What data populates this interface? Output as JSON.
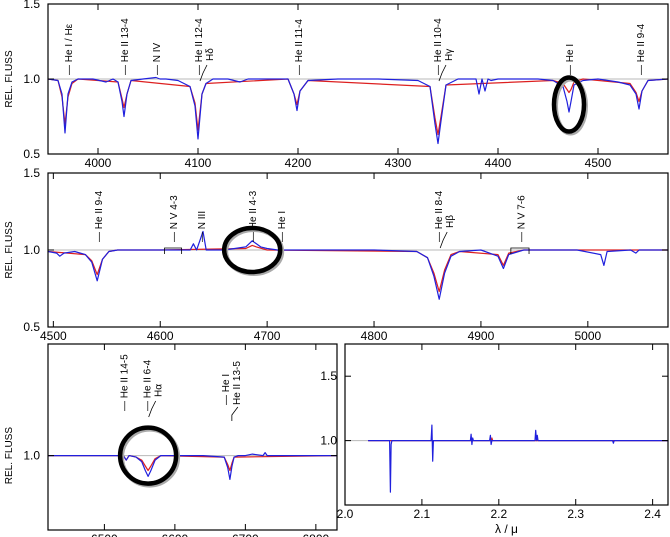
{
  "chart_data": [
    {
      "type": "line",
      "panel": "top",
      "ylabel": "REL. FLUSS",
      "xlim": [
        3950,
        4570
      ],
      "ylim": [
        0.5,
        1.5
      ],
      "xticks": [
        4000,
        4100,
        4200,
        4300,
        4400,
        4500
      ],
      "xtick_labels": [
        "4000",
        "4100",
        "4200",
        "4300",
        "4400",
        "4500"
      ],
      "yticks": [
        0.5,
        1.0,
        1.5
      ],
      "ytick_labels": [
        "0.5",
        "1.0",
        "1.5"
      ],
      "series": [
        {
          "color": "#2020dd",
          "x": [
            3950,
            3960,
            3964,
            3967,
            3970,
            3974,
            3980,
            3995,
            4008,
            4015,
            4020,
            4024,
            4026,
            4029,
            4033,
            4045,
            4058,
            4062,
            4068,
            4080,
            4092,
            4097,
            4100,
            4102,
            4104,
            4108,
            4115,
            4130,
            4142,
            4150,
            4170,
            4190,
            4196,
            4199,
            4202,
            4210,
            4240,
            4280,
            4320,
            4332,
            4337,
            4340,
            4343,
            4348,
            4360,
            4378,
            4381,
            4384,
            4387,
            4390,
            4393,
            4400,
            4420,
            4440,
            4455,
            4465,
            4469,
            4471,
            4473,
            4476,
            4485,
            4500,
            4520,
            4532,
            4538,
            4541,
            4544,
            4550,
            4570
          ],
          "y": [
            1.0,
            0.99,
            0.9,
            0.64,
            0.9,
            0.98,
            1.0,
            1.0,
            0.98,
            1.0,
            0.98,
            0.85,
            0.75,
            0.9,
            0.99,
            1.0,
            1.01,
            1.0,
            1.0,
            0.99,
            0.95,
            0.82,
            0.6,
            0.75,
            0.9,
            0.97,
            1.0,
            1.0,
            0.98,
            1.0,
            1.0,
            1.0,
            0.9,
            0.79,
            0.92,
            0.99,
            1.0,
            1.0,
            0.99,
            0.95,
            0.7,
            0.57,
            0.72,
            0.96,
            1.0,
            1.0,
            0.9,
            1.0,
            0.92,
            1.0,
            0.99,
            1.0,
            1.0,
            1.0,
            0.99,
            0.95,
            0.85,
            0.78,
            0.85,
            0.96,
            0.99,
            1.0,
            0.98,
            0.96,
            0.9,
            0.8,
            0.92,
            0.99,
            1.0
          ]
        },
        {
          "color": "#dd2020",
          "x": [
            3950,
            3960,
            3964,
            3967,
            3970,
            3974,
            3980,
            4020,
            4024,
            4026,
            4029,
            4033,
            4092,
            4097,
            4100,
            4102,
            4104,
            4108,
            4190,
            4196,
            4199,
            4202,
            4210,
            4332,
            4337,
            4340,
            4343,
            4348,
            4455,
            4465,
            4469,
            4471,
            4473,
            4476,
            4485,
            4532,
            4538,
            4541,
            4544,
            4550,
            4570
          ],
          "y": [
            1.0,
            0.99,
            0.88,
            0.7,
            0.88,
            0.97,
            1.0,
            0.98,
            0.87,
            0.81,
            0.9,
            0.99,
            0.95,
            0.84,
            0.66,
            0.78,
            0.9,
            0.97,
            1.0,
            0.9,
            0.83,
            0.92,
            0.99,
            0.95,
            0.74,
            0.63,
            0.75,
            0.96,
            0.99,
            0.97,
            0.93,
            0.91,
            0.93,
            0.98,
            1.0,
            0.97,
            0.91,
            0.85,
            0.92,
            0.99,
            1.0
          ]
        }
      ],
      "annotations": [
        {
          "label": "He I / Hε",
          "x": 3970
        },
        {
          "label": "He II 13-4",
          "x": 4026
        },
        {
          "label": "N IV",
          "x": 4058
        },
        {
          "label": "He II 12-4",
          "x": 4100,
          "second": "Hδ"
        },
        {
          "label": "He II 11-4",
          "x": 4200
        },
        {
          "label": "He II 10-4",
          "x": 4339,
          "second": "Hγ"
        },
        {
          "label": "He I",
          "x": 4471
        },
        {
          "label": "He II 9-4",
          "x": 4542
        }
      ],
      "circles": [
        {
          "x": 4471,
          "y": 0.83
        }
      ]
    },
    {
      "type": "line",
      "panel": "middle",
      "ylabel": "REL. FLUSS",
      "xlim": [
        4495,
        5075
      ],
      "ylim": [
        0.5,
        1.5
      ],
      "xticks": [
        4500,
        4600,
        4700,
        4800,
        4900,
        5000
      ],
      "xtick_labels": [
        "4500",
        "4600",
        "4700",
        "4800",
        "4900",
        "5000"
      ],
      "yticks": [
        0.5,
        1.0,
        1.5
      ],
      "ytick_labels": [
        "0.5",
        "1.0",
        "1.5"
      ],
      "series": [
        {
          "color": "#2020dd",
          "x": [
            4495,
            4503,
            4506,
            4510,
            4520,
            4530,
            4536,
            4541,
            4546,
            4552,
            4560,
            4600,
            4628,
            4631,
            4634,
            4637,
            4640,
            4643,
            4650,
            4660,
            4680,
            4686,
            4690,
            4694,
            4700,
            4710,
            4713,
            4716,
            4740,
            4800,
            4840,
            4850,
            4856,
            4861,
            4866,
            4872,
            4880,
            4900,
            4916,
            4921,
            4926,
            4940,
            4990,
            5012,
            5015,
            5018,
            5040,
            5045,
            5048,
            5075
          ],
          "y": [
            0.99,
            0.98,
            0.96,
            0.98,
            0.99,
            0.97,
            0.92,
            0.8,
            0.94,
            0.99,
            1.0,
            1.0,
            1.0,
            1.04,
            1.0,
            1.06,
            1.12,
            1.0,
            1.0,
            1.0,
            1.02,
            1.06,
            1.04,
            1.02,
            1.01,
            1.0,
            0.98,
            1.0,
            1.0,
            1.0,
            0.99,
            0.95,
            0.83,
            0.68,
            0.85,
            0.96,
            0.99,
            1.0,
            0.96,
            0.88,
            0.97,
            1.0,
            1.0,
            0.97,
            0.9,
            0.99,
            1.0,
            0.98,
            1.0,
            1.0
          ]
        },
        {
          "color": "#dd2020",
          "x": [
            4495,
            4530,
            4536,
            4541,
            4546,
            4552,
            4560,
            4600,
            4680,
            4686,
            4690,
            4700,
            4840,
            4850,
            4856,
            4861,
            4866,
            4872,
            4880,
            4916,
            4921,
            4926,
            4940,
            5075
          ],
          "y": [
            0.99,
            0.97,
            0.93,
            0.84,
            0.94,
            0.99,
            1.0,
            1.0,
            1.01,
            1.03,
            1.02,
            1.0,
            0.99,
            0.95,
            0.85,
            0.73,
            0.87,
            0.97,
            0.99,
            0.97,
            0.9,
            0.98,
            1.0,
            1.0
          ]
        }
      ],
      "annotations": [
        {
          "label": "He II 9-4",
          "x": 4542
        },
        {
          "label": "N V 4-3",
          "x": 4612,
          "bracket": [
            4604,
            4620
          ]
        },
        {
          "label": "N III",
          "x": 4638
        },
        {
          "label": "He II 4-3",
          "x": 4686
        },
        {
          "label": "He I",
          "x": 4713
        },
        {
          "label": "He II 8-4",
          "x": 4860,
          "second": "Hβ"
        },
        {
          "label": "N V 7-6",
          "x": 4937,
          "bracket": [
            4928,
            4945
          ]
        }
      ],
      "circles": [
        {
          "x": 4686,
          "y": 1.0
        }
      ]
    },
    {
      "type": "line",
      "panel": "bottom-left",
      "ylabel": "REL. FLUSS",
      "xlim": [
        6420,
        6830
      ],
      "ylim": [
        0.5,
        1.75
      ],
      "xticks": [
        6500,
        6600,
        6700,
        6800
      ],
      "xtick_labels": [
        "6500",
        "6600",
        "6700",
        "6800"
      ],
      "yticks": [
        1.0
      ],
      "ytick_labels": [
        "1.0"
      ],
      "series": [
        {
          "color": "#2020dd",
          "x": [
            6420,
            6470,
            6500,
            6527,
            6531,
            6535,
            6545,
            6553,
            6558,
            6562,
            6566,
            6572,
            6580,
            6600,
            6640,
            6670,
            6675,
            6678,
            6681,
            6684,
            6690,
            6700,
            6710,
            6725,
            6728,
            6731,
            6750,
            6830
          ],
          "y": [
            1.0,
            1.0,
            1.0,
            1.0,
            0.97,
            1.0,
            0.99,
            0.96,
            0.9,
            0.86,
            0.9,
            0.97,
            1.0,
            1.0,
            1.0,
            0.99,
            0.92,
            0.84,
            0.93,
            0.99,
            1.0,
            1.0,
            1.01,
            1.0,
            1.02,
            1.0,
            1.0,
            1.0
          ]
        },
        {
          "color": "#dd2020",
          "x": [
            6420,
            6527,
            6531,
            6535,
            6545,
            6553,
            6558,
            6562,
            6566,
            6572,
            6580,
            6670,
            6675,
            6678,
            6681,
            6684,
            6830
          ],
          "y": [
            1.0,
            1.0,
            0.97,
            1.0,
            0.99,
            0.97,
            0.93,
            0.9,
            0.93,
            0.98,
            1.0,
            0.99,
            0.94,
            0.9,
            0.95,
            0.99,
            1.0
          ]
        }
      ],
      "annotations": [
        {
          "label": "He II 14-5",
          "x": 6527
        },
        {
          "label": "He II 6-4",
          "x": 6560,
          "second": "Hα"
        },
        {
          "label": "He I",
          "x": 6678,
          "group": "He II 13-5"
        }
      ],
      "circles": [
        {
          "x": 6562,
          "y": 1.0
        }
      ]
    },
    {
      "type": "line",
      "panel": "bottom-right",
      "xlabel": "λ / μ",
      "xlim": [
        2.0,
        2.42
      ],
      "ylim": [
        0.5,
        1.75
      ],
      "xticks": [
        2.0,
        2.1,
        2.2,
        2.3,
        2.4
      ],
      "xtick_labels": [
        "2.0",
        "2.1",
        "2.2",
        "2.3",
        "2.4"
      ],
      "yticks": [
        1.0,
        1.5
      ],
      "ytick_labels": [
        "1.0",
        "1.5"
      ],
      "series": [
        {
          "color": "#2020dd",
          "x": [
            2.03,
            2.058,
            2.059,
            2.06,
            2.061,
            2.112,
            2.113,
            2.114,
            2.115,
            2.116,
            2.163,
            2.164,
            2.165,
            2.166,
            2.167,
            2.188,
            2.189,
            2.19,
            2.191,
            2.247,
            2.248,
            2.249,
            2.25,
            2.251,
            2.252,
            2.348,
            2.349,
            2.35,
            2.42
          ],
          "y": [
            1.0,
            1.0,
            0.6,
            0.97,
            1.0,
            1.0,
            1.12,
            0.84,
            1.0,
            1.0,
            1.0,
            1.05,
            0.97,
            1.02,
            1.0,
            1.0,
            1.04,
            0.97,
            1.0,
            1.0,
            1.08,
            1.0,
            1.04,
            1.0,
            1.0,
            1.0,
            0.98,
            1.0,
            1.0
          ]
        },
        {
          "color": "#dd2020",
          "x": [
            2.03,
            2.19,
            2.191,
            2.192,
            2.42
          ],
          "y": [
            1.0,
            1.0,
            1.02,
            1.0,
            1.0
          ]
        }
      ]
    }
  ]
}
